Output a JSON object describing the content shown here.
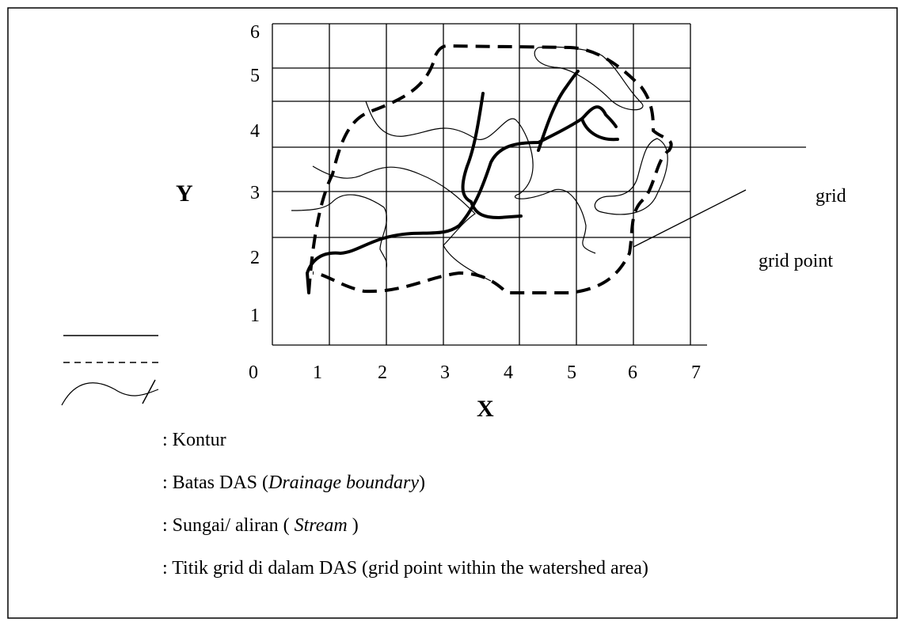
{
  "axes": {
    "y_label": "Y",
    "x_label": "X",
    "x_ticks": [
      "0",
      "1",
      "2",
      "3",
      "4",
      "5",
      "6",
      "7"
    ],
    "y_ticks": [
      "1",
      "2",
      "3",
      "4",
      "5",
      "6"
    ]
  },
  "annotations": {
    "grid": "grid",
    "grid_point": "grid point"
  },
  "legend": [
    {
      "parts": [
        ": Kontur"
      ]
    },
    {
      "parts": [
        ": Batas DAS (",
        "Drainage boundary",
        ")"
      ]
    },
    {
      "parts": [
        ": Sungai/ aliran ( ",
        "Stream",
        " )"
      ]
    },
    {
      "parts": [
        ": Titik grid di dalam DAS (grid point within the watershed area)"
      ]
    }
  ]
}
